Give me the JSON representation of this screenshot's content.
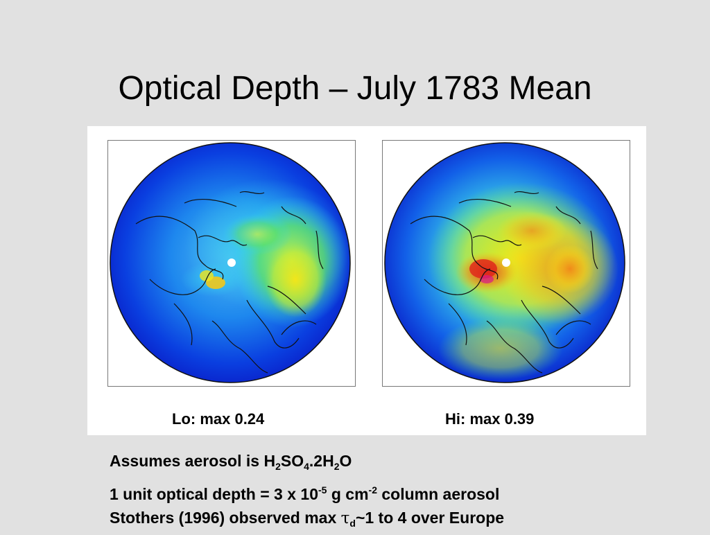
{
  "slide": {
    "title": "Optical Depth – July 1783 Mean"
  },
  "maps": [
    {
      "caption": "Lo: max 0.24",
      "intensity": 0.24
    },
    {
      "caption": "Hi: max 0.39",
      "intensity": 0.39
    }
  ],
  "notes": {
    "line1": {
      "prefix": "Assumes aerosol is H",
      "s1": "2",
      "t1": "SO",
      "s2": "4",
      "t2": ".2H",
      "s3": "2",
      "t3": "O"
    },
    "line2": {
      "prefix": "1 unit optical depth = 3 x 10",
      "e1": "-5",
      "mid": " g cm",
      "e2": "-2",
      "suffix": " column aerosol"
    },
    "line3": {
      "prefix": "Stothers (1996) observed max ",
      "tau": "τ",
      "sub": "d",
      "suffix": "~1 to 4 over Europe"
    }
  },
  "colors": {
    "background": "#e1e1e1",
    "panel": "#ffffff",
    "deep_blue": "#0a1fd6",
    "cyan": "#2fd0f5",
    "yellow": "#f2e61a",
    "orange": "#f08a1a",
    "red": "#e0221a"
  }
}
